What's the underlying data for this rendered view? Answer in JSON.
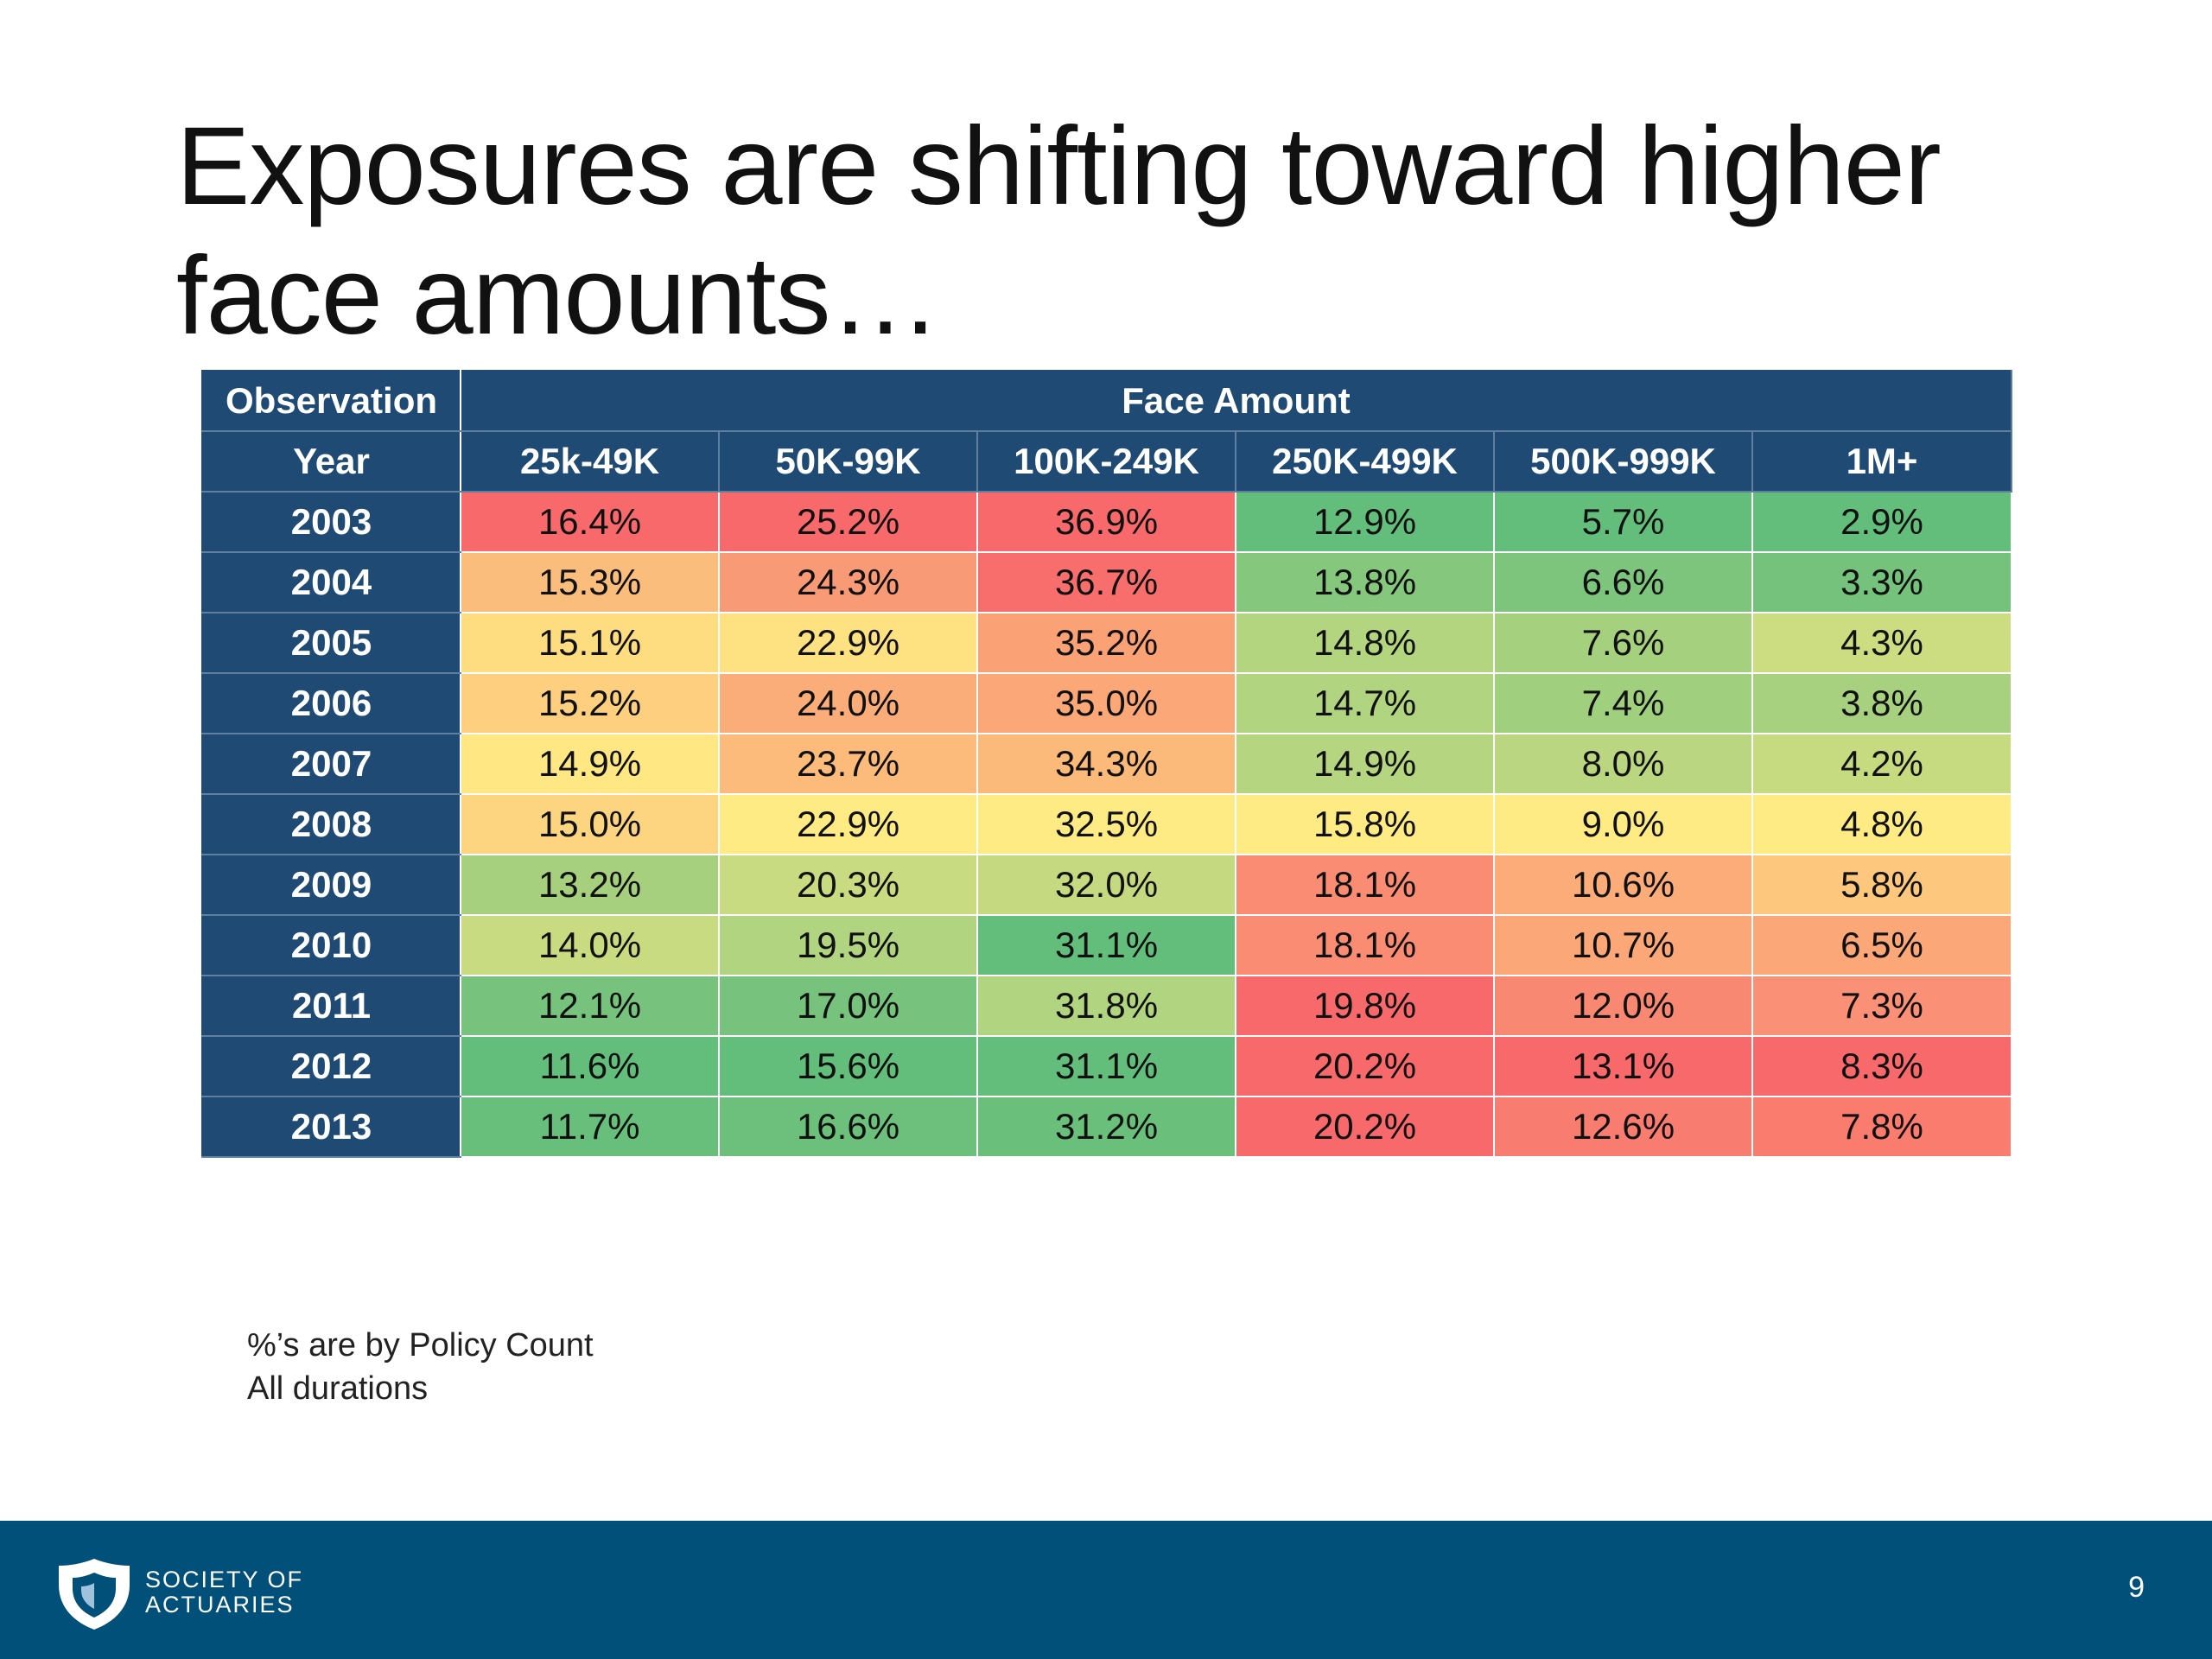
{
  "title": "Exposures are shifting toward higher face amounts…",
  "table": {
    "header_row1": {
      "observation": "Observation",
      "group": "Face Amount"
    },
    "header_row2": {
      "year": "Year",
      "columns": [
        "25k-49K",
        "50K-99K",
        "100K-249K",
        "250K-499K",
        "500K-999K",
        "1M+"
      ]
    },
    "rows": [
      {
        "year": "2003",
        "cells": [
          "16.4%",
          "25.2%",
          "36.9%",
          "12.9%",
          "5.7%",
          "2.9%"
        ]
      },
      {
        "year": "2004",
        "cells": [
          "15.3%",
          "24.3%",
          "36.7%",
          "13.8%",
          "6.6%",
          "3.3%"
        ]
      },
      {
        "year": "2005",
        "cells": [
          "15.1%",
          "22.9%",
          "35.2%",
          "14.8%",
          "7.6%",
          "4.3%"
        ]
      },
      {
        "year": "2006",
        "cells": [
          "15.2%",
          "24.0%",
          "35.0%",
          "14.7%",
          "7.4%",
          "3.8%"
        ]
      },
      {
        "year": "2007",
        "cells": [
          "14.9%",
          "23.7%",
          "34.3%",
          "14.9%",
          "8.0%",
          "4.2%"
        ]
      },
      {
        "year": "2008",
        "cells": [
          "15.0%",
          "22.9%",
          "32.5%",
          "15.8%",
          "9.0%",
          "4.8%"
        ]
      },
      {
        "year": "2009",
        "cells": [
          "13.2%",
          "20.3%",
          "32.0%",
          "18.1%",
          "10.6%",
          "5.8%"
        ]
      },
      {
        "year": "2010",
        "cells": [
          "14.0%",
          "19.5%",
          "31.1%",
          "18.1%",
          "10.7%",
          "6.5%"
        ]
      },
      {
        "year": "2011",
        "cells": [
          "12.1%",
          "17.0%",
          "31.8%",
          "19.8%",
          "12.0%",
          "7.3%"
        ]
      },
      {
        "year": "2012",
        "cells": [
          "11.6%",
          "15.6%",
          "31.1%",
          "20.2%",
          "13.1%",
          "8.3%"
        ]
      },
      {
        "year": "2013",
        "cells": [
          "11.7%",
          "16.6%",
          "31.2%",
          "20.2%",
          "12.6%",
          "7.8%"
        ]
      }
    ],
    "cell_colors": [
      [
        "#f8696b",
        "#f8696b",
        "#f8696b",
        "#63be7b",
        "#63be7b",
        "#63be7b"
      ],
      [
        "#fbbd7b",
        "#f99a76",
        "#f86e6c",
        "#85c77d",
        "#7dc47c",
        "#74c27c"
      ],
      [
        "#fedd81",
        "#fee282",
        "#fba176",
        "#b4d57f",
        "#a5d07e",
        "#cbdc81"
      ],
      [
        "#fdcf7e",
        "#fbad79",
        "#fba777",
        "#b0d47f",
        "#a0cf7e",
        "#a7d17f"
      ],
      [
        "#ffe883",
        "#fcbb7b",
        "#fcba7a",
        "#b6d580",
        "#bad680",
        "#c6da80"
      ],
      [
        "#fdd580",
        "#ffeb84",
        "#ffeb84",
        "#ffeb84",
        "#ffeb84",
        "#ffeb84"
      ],
      [
        "#a6d07e",
        "#c8db80",
        "#c5da80",
        "#fa8c73",
        "#fbac79",
        "#fdc77d"
      ],
      [
        "#c8db80",
        "#b0d47f",
        "#63be7b",
        "#fa8c73",
        "#fba777",
        "#fba777"
      ],
      [
        "#77c27c",
        "#77c27c",
        "#b0d47f",
        "#f8696b",
        "#f98872",
        "#fa9075"
      ],
      [
        "#63be7b",
        "#63be7b",
        "#63be7b",
        "#f8696b",
        "#f8696b",
        "#f8696b"
      ],
      [
        "#68bf7b",
        "#6dc07c",
        "#6ac07b",
        "#f8696b",
        "#f87c6f",
        "#f97c6f"
      ]
    ],
    "header_bg": "#1f4a74"
  },
  "notes": [
    "%’s are by Policy Count",
    "All durations"
  ],
  "footer": {
    "logo_text_line1": "SOCIETY OF",
    "logo_text_line2": "ACTUARIES",
    "page_number": "9",
    "bar_color": "#00507a"
  }
}
